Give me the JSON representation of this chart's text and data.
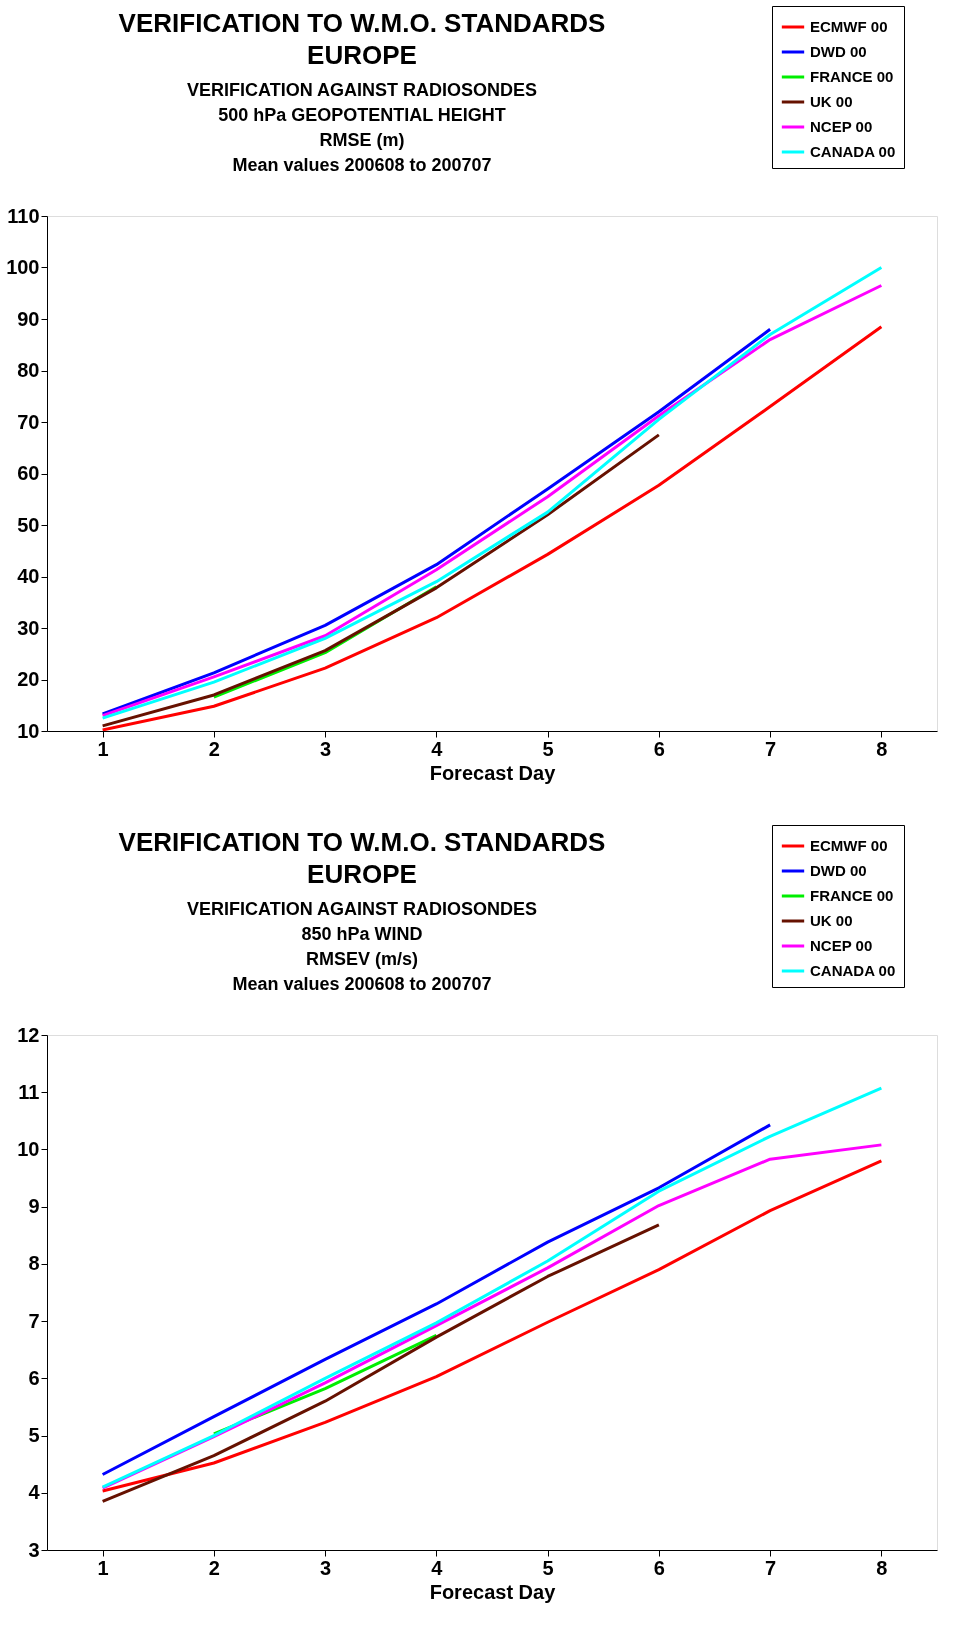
{
  "chart_data": [
    {
      "type": "line",
      "title": "VERIFICATION TO W.M.O. STANDARDS\nEUROPE",
      "subtitle": "VERIFICATION AGAINST RADIOSONDES\n500 hPa GEOPOTENTIAL HEIGHT\nRMSE (m)\nMean values 200608 to 200707",
      "xlabel": "Forecast Day",
      "x": [
        1,
        2,
        3,
        4,
        5,
        6,
        7,
        8
      ],
      "xlim": [
        0.5,
        8.5
      ],
      "xticks": [
        1,
        2,
        3,
        4,
        5,
        6,
        7,
        8
      ],
      "ylim": [
        10,
        110
      ],
      "yticks": [
        10,
        20,
        30,
        40,
        50,
        60,
        70,
        80,
        90,
        100,
        110
      ],
      "grid": false,
      "legend": "top right",
      "marker": "none",
      "line_style": "solid",
      "series": [
        {
          "name": "ECMWF 00",
          "color": "#ff0000",
          "values": [
            10.2,
            14.8,
            22.2,
            32,
            44.3,
            57.7,
            73,
            88.5
          ]
        },
        {
          "name": "DWD 00",
          "color": "#0000ff",
          "values": [
            13.3,
            21.3,
            30.5,
            42.3,
            57,
            72,
            88,
            null
          ]
        },
        {
          "name": "FRANCE 00",
          "color": "#00ee00",
          "values": [
            null,
            16.6,
            25.2,
            38,
            null,
            null,
            null,
            null
          ]
        },
        {
          "name": "UK 00",
          "color": "#661100",
          "values": [
            11,
            17,
            25.6,
            37.8,
            52,
            67.5,
            null,
            null
          ]
        },
        {
          "name": "NCEP 00",
          "color": "#ff00ff",
          "values": [
            13,
            20.5,
            28.5,
            41.3,
            55.5,
            71.2,
            86,
            96.5
          ]
        },
        {
          "name": "CANADA 00",
          "color": "#00ffff",
          "values": [
            12.5,
            19.5,
            28,
            39,
            52.5,
            70.5,
            87,
            100
          ]
        }
      ]
    },
    {
      "type": "line",
      "title": "VERIFICATION TO W.M.O. STANDARDS\nEUROPE",
      "subtitle": "VERIFICATION AGAINST RADIOSONDES\n850 hPa WIND\nRMSEV (m/s)\nMean values 200608 to 200707",
      "xlabel": "Forecast Day",
      "x": [
        1,
        2,
        3,
        4,
        5,
        6,
        7,
        8
      ],
      "xlim": [
        0.5,
        8.5
      ],
      "xticks": [
        1,
        2,
        3,
        4,
        5,
        6,
        7,
        8
      ],
      "ylim": [
        3,
        12
      ],
      "yticks": [
        3,
        4,
        5,
        6,
        7,
        8,
        9,
        10,
        11,
        12
      ],
      "grid": false,
      "legend": "top right",
      "marker": "none",
      "line_style": "solid",
      "series": [
        {
          "name": "ECMWF 00",
          "color": "#ff0000",
          "values": [
            4.03,
            4.52,
            5.23,
            6.03,
            6.98,
            7.9,
            8.93,
            9.8
          ]
        },
        {
          "name": "DWD 00",
          "color": "#0000ff",
          "values": [
            4.32,
            5.33,
            6.33,
            7.3,
            8.38,
            9.33,
            10.43,
            null
          ]
        },
        {
          "name": "FRANCE 00",
          "color": "#00ee00",
          "values": [
            null,
            5.03,
            5.82,
            6.75,
            null,
            null,
            null,
            null
          ]
        },
        {
          "name": "UK 00",
          "color": "#661100",
          "values": [
            3.85,
            4.65,
            5.6,
            6.72,
            7.78,
            8.68,
            null,
            null
          ]
        },
        {
          "name": "NCEP 00",
          "color": "#ff00ff",
          "values": [
            4.08,
            4.98,
            5.92,
            6.92,
            7.93,
            9.02,
            9.83,
            10.08
          ]
        },
        {
          "name": "CANADA 00",
          "color": "#00ffff",
          "values": [
            4.1,
            5.0,
            6.0,
            6.97,
            8.05,
            9.27,
            10.23,
            11.07
          ]
        }
      ]
    }
  ]
}
